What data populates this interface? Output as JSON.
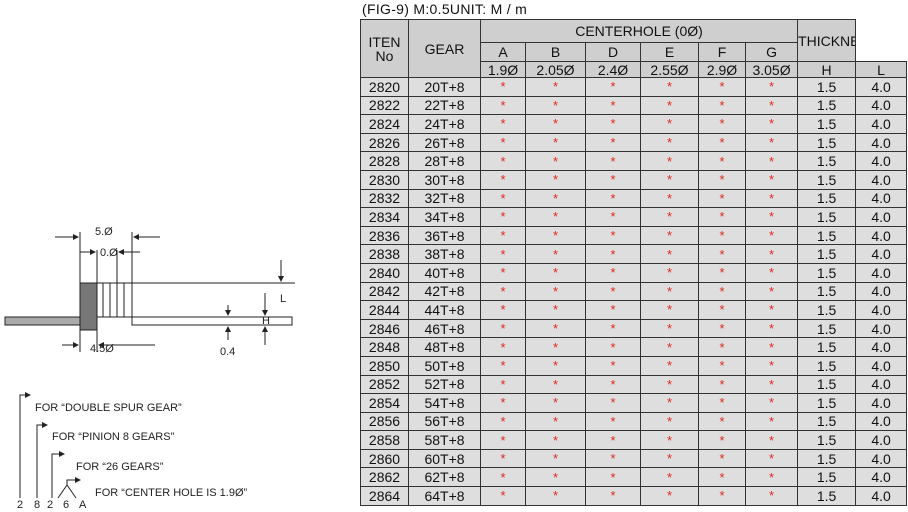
{
  "drawing": {
    "outer_dia": "5.Ø",
    "inner_dia": "0.Ø",
    "base_dia": "4.5Ø",
    "l_label": "L",
    "h_label": "H",
    "gap": "0.4"
  },
  "legend": {
    "items": [
      "FOR “DOUBLE SPUR GEAR”",
      "FOR “PINION 8 GEARS”",
      "FOR “26 GEARS”",
      "FOR “CENTER HOLE IS 1.9Ø”"
    ],
    "code": [
      "2",
      "8",
      "2",
      "6",
      "A"
    ]
  },
  "table": {
    "title": "(FIG-9) M:0.5UNIT: M / m",
    "headers": {
      "item": [
        "ITEN",
        "No"
      ],
      "gear": "GEAR",
      "centerhole": "CENTERHOLE (0Ø)",
      "letters": [
        "A",
        "B",
        "D",
        "E",
        "F",
        "G"
      ],
      "sizes": [
        "1.9Ø",
        "2.05Ø",
        "2.4Ø",
        "2.55Ø",
        "2.9Ø",
        "3.05Ø"
      ],
      "thickness": "THICKNESS",
      "thickness_sub": [
        "H",
        "L"
      ]
    },
    "rows": [
      [
        "2820",
        "20T+8",
        "*",
        "*",
        "*",
        "*",
        "*",
        "*",
        "1.5",
        "4.0"
      ],
      [
        "2822",
        "22T+8",
        "*",
        "*",
        "*",
        "*",
        "*",
        "*",
        "1.5",
        "4.0"
      ],
      [
        "2824",
        "24T+8",
        "*",
        "*",
        "*",
        "*",
        "*",
        "*",
        "1.5",
        "4.0"
      ],
      [
        "2826",
        "26T+8",
        "*",
        "*",
        "*",
        "*",
        "*",
        "*",
        "1.5",
        "4.0"
      ],
      [
        "2828",
        "28T+8",
        "*",
        "*",
        "*",
        "*",
        "*",
        "*",
        "1.5",
        "4.0"
      ],
      [
        "2830",
        "30T+8",
        "*",
        "*",
        "*",
        "*",
        "*",
        "*",
        "1.5",
        "4.0"
      ],
      [
        "2832",
        "32T+8",
        "*",
        "*",
        "*",
        "*",
        "*",
        "*",
        "1.5",
        "4.0"
      ],
      [
        "2834",
        "34T+8",
        "*",
        "*",
        "*",
        "*",
        "*",
        "*",
        "1.5",
        "4.0"
      ],
      [
        "2836",
        "36T+8",
        "*",
        "*",
        "*",
        "*",
        "*",
        "*",
        "1.5",
        "4.0"
      ],
      [
        "2838",
        "38T+8",
        "*",
        "*",
        "*",
        "*",
        "*",
        "*",
        "1.5",
        "4.0"
      ],
      [
        "2840",
        "40T+8",
        "*",
        "*",
        "*",
        "*",
        "*",
        "*",
        "1.5",
        "4.0"
      ],
      [
        "2842",
        "42T+8",
        "*",
        "*",
        "*",
        "*",
        "*",
        "*",
        "1.5",
        "4.0"
      ],
      [
        "2844",
        "44T+8",
        "*",
        "*",
        "*",
        "*",
        "*",
        "*",
        "1.5",
        "4.0"
      ],
      [
        "2846",
        "46T+8",
        "*",
        "*",
        "*",
        "*",
        "*",
        "*",
        "1.5",
        "4.0"
      ],
      [
        "2848",
        "48T+8",
        "*",
        "*",
        "*",
        "*",
        "*",
        "*",
        "1.5",
        "4.0"
      ],
      [
        "2850",
        "50T+8",
        "*",
        "*",
        "*",
        "*",
        "*",
        "*",
        "1.5",
        "4.0"
      ],
      [
        "2852",
        "52T+8",
        "*",
        "*",
        "*",
        "*",
        "*",
        "*",
        "1.5",
        "4.0"
      ],
      [
        "2854",
        "54T+8",
        "*",
        "*",
        "*",
        "*",
        "*",
        "*",
        "1.5",
        "4.0"
      ],
      [
        "2856",
        "56T+8",
        "*",
        "*",
        "*",
        "*",
        "*",
        "*",
        "1.5",
        "4.0"
      ],
      [
        "2858",
        "58T+8",
        "*",
        "*",
        "*",
        "*",
        "*",
        "*",
        "1.5",
        "4.0"
      ],
      [
        "2860",
        "60T+8",
        "*",
        "*",
        "*",
        "*",
        "*",
        "*",
        "1.5",
        "4.0"
      ],
      [
        "2862",
        "62T+8",
        "*",
        "*",
        "*",
        "*",
        "*",
        "*",
        "1.5",
        "4.0"
      ],
      [
        "2864",
        "64T+8",
        "*",
        "*",
        "*",
        "*",
        "*",
        "*",
        "1.5",
        "4.0"
      ]
    ]
  }
}
